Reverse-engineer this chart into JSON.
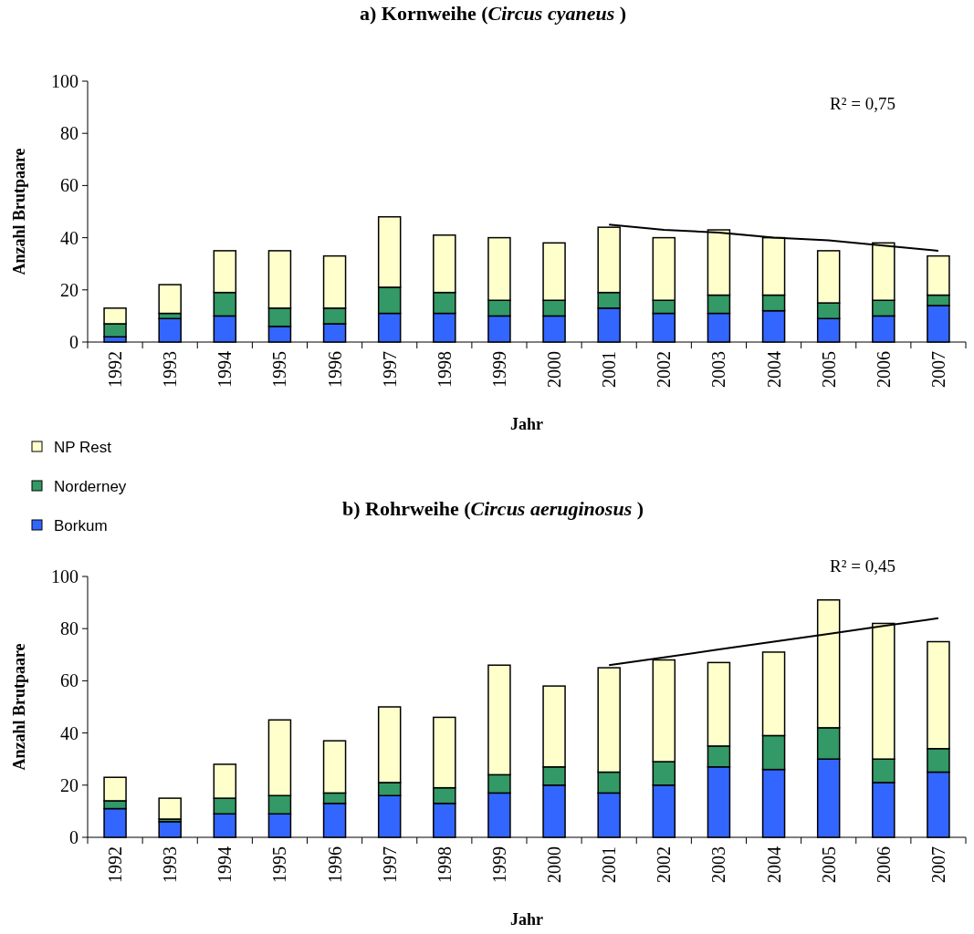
{
  "chart_data": [
    {
      "type": "bar",
      "title": "a) Kornweihe (Circus cyaneus )",
      "xlabel": "Jahr",
      "ylabel": "Anzahl Brutpaare",
      "categories": [
        "1992",
        "1993",
        "1994",
        "1995",
        "1996",
        "1997",
        "1998",
        "1999",
        "2000",
        "2001",
        "2002",
        "2003",
        "2004",
        "2005",
        "2006",
        "2007"
      ],
      "stacked": true,
      "ylim": [
        0,
        100
      ],
      "yticks": [
        0,
        20,
        40,
        60,
        80,
        100
      ],
      "legend": "bottom left",
      "annotations": [
        "R² = 0,75"
      ],
      "series": [
        {
          "name": "Borkum",
          "color": "#3366ff",
          "values": [
            2,
            9,
            10,
            6,
            7,
            11,
            11,
            10,
            10,
            13,
            11,
            11,
            12,
            9,
            10,
            14
          ]
        },
        {
          "name": "Norderney",
          "color": "#339966",
          "values": [
            5,
            2,
            9,
            7,
            6,
            10,
            8,
            6,
            6,
            6,
            5,
            7,
            6,
            6,
            6,
            4
          ]
        },
        {
          "name": "NP Rest",
          "color": "#ffffcc",
          "values": [
            6,
            11,
            16,
            22,
            20,
            27,
            22,
            24,
            22,
            25,
            24,
            25,
            22,
            20,
            22,
            15
          ]
        },
        {
          "type": "line",
          "color": "#000000",
          "values": [
            null,
            null,
            null,
            null,
            null,
            null,
            null,
            null,
            null,
            45,
            43,
            42,
            40,
            39,
            37,
            35
          ]
        }
      ]
    },
    {
      "type": "bar",
      "title": "b) Rohrweihe (Circus aeruginosus )",
      "xlabel": "Jahr",
      "ylabel": "Anzahl Brutpaare",
      "categories": [
        "1992",
        "1993",
        "1994",
        "1995",
        "1996",
        "1997",
        "1998",
        "1999",
        "2000",
        "2001",
        "2002",
        "2003",
        "2004",
        "2005",
        "2006",
        "2007"
      ],
      "stacked": true,
      "ylim": [
        0,
        100
      ],
      "yticks": [
        0,
        20,
        40,
        60,
        80,
        100
      ],
      "annotations": [
        "R² = 0,45"
      ],
      "series": [
        {
          "color": "#3366ff",
          "values": [
            11,
            6,
            9,
            9,
            13,
            16,
            13,
            17,
            20,
            17,
            20,
            27,
            26,
            30,
            21,
            25
          ]
        },
        {
          "color": "#339966",
          "values": [
            3,
            1,
            6,
            7,
            4,
            5,
            6,
            7,
            7,
            8,
            9,
            8,
            13,
            12,
            9,
            9
          ]
        },
        {
          "color": "#ffffcc",
          "values": [
            9,
            8,
            13,
            29,
            20,
            29,
            27,
            42,
            31,
            40,
            39,
            32,
            32,
            49,
            52,
            41
          ]
        },
        {
          "type": "line",
          "color": "#000000",
          "values": [
            null,
            null,
            null,
            null,
            null,
            null,
            null,
            null,
            null,
            66,
            69,
            72,
            75,
            78,
            81,
            84
          ]
        }
      ]
    }
  ]
}
